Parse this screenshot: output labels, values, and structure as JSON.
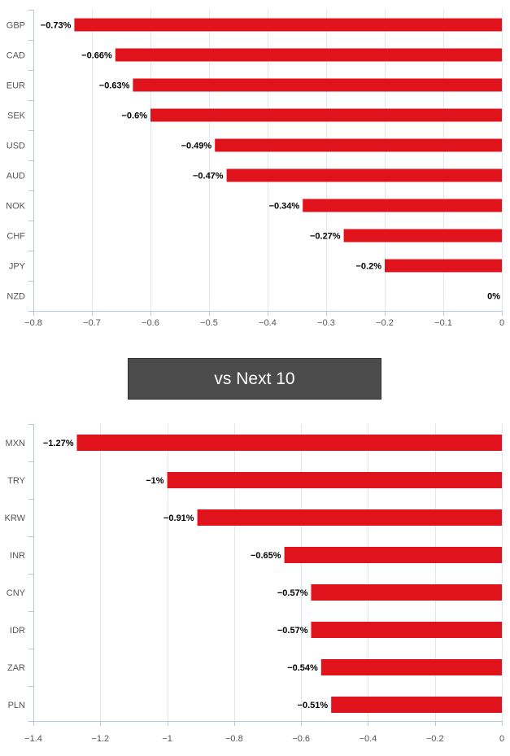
{
  "banner": {
    "label": "vs Next 10"
  },
  "colors": {
    "bar": "#e0121c",
    "grid": "#dfe6ef",
    "axis": "#b8c7dd",
    "tick_text": "#555555",
    "label_text": "#000000"
  },
  "chart_data": [
    {
      "type": "bar",
      "orientation": "horizontal",
      "title": "",
      "xlabel": "",
      "ylabel": "",
      "categories": [
        "GBP",
        "CAD",
        "EUR",
        "SEK",
        "USD",
        "AUD",
        "NOK",
        "CHF",
        "JPY",
        "NZD"
      ],
      "values": [
        -0.73,
        -0.66,
        -0.63,
        -0.6,
        -0.49,
        -0.47,
        -0.34,
        -0.27,
        -0.2,
        0
      ],
      "data_labels": [
        "−0.73%",
        "−0.66%",
        "−0.63%",
        "−0.6%",
        "−0.49%",
        "−0.47%",
        "−0.34%",
        "−0.27%",
        "−0.2%",
        "0%"
      ],
      "xlim": [
        -0.8,
        0
      ],
      "xticks": [
        -0.8,
        -0.7,
        -0.6,
        -0.5,
        -0.4,
        -0.3,
        -0.2,
        -0.1,
        0
      ],
      "xtick_labels": [
        "−0.8",
        "−0.7",
        "−0.6",
        "−0.5",
        "−0.4",
        "−0.3",
        "−0.2",
        "−0.1",
        "0"
      ],
      "grid": true
    },
    {
      "type": "bar",
      "orientation": "horizontal",
      "title": "",
      "xlabel": "",
      "ylabel": "",
      "categories": [
        "MXN",
        "TRY",
        "KRW",
        "INR",
        "CNY",
        "IDR",
        "ZAR",
        "PLN"
      ],
      "values": [
        -1.27,
        -1,
        -0.91,
        -0.65,
        -0.57,
        -0.57,
        -0.54,
        -0.51
      ],
      "data_labels": [
        "−1.27%",
        "−1%",
        "−0.91%",
        "−0.65%",
        "−0.57%",
        "−0.57%",
        "−0.54%",
        "−0.51%"
      ],
      "xlim": [
        -1.4,
        0
      ],
      "xticks": [
        -1.4,
        -1.2,
        -1,
        -0.8,
        -0.6,
        -0.4,
        -0.2,
        0
      ],
      "xtick_labels": [
        "−1.4",
        "−1.2",
        "−1",
        "−0.8",
        "−0.6",
        "−0.4",
        "−0.2",
        "0"
      ],
      "grid": true
    }
  ]
}
